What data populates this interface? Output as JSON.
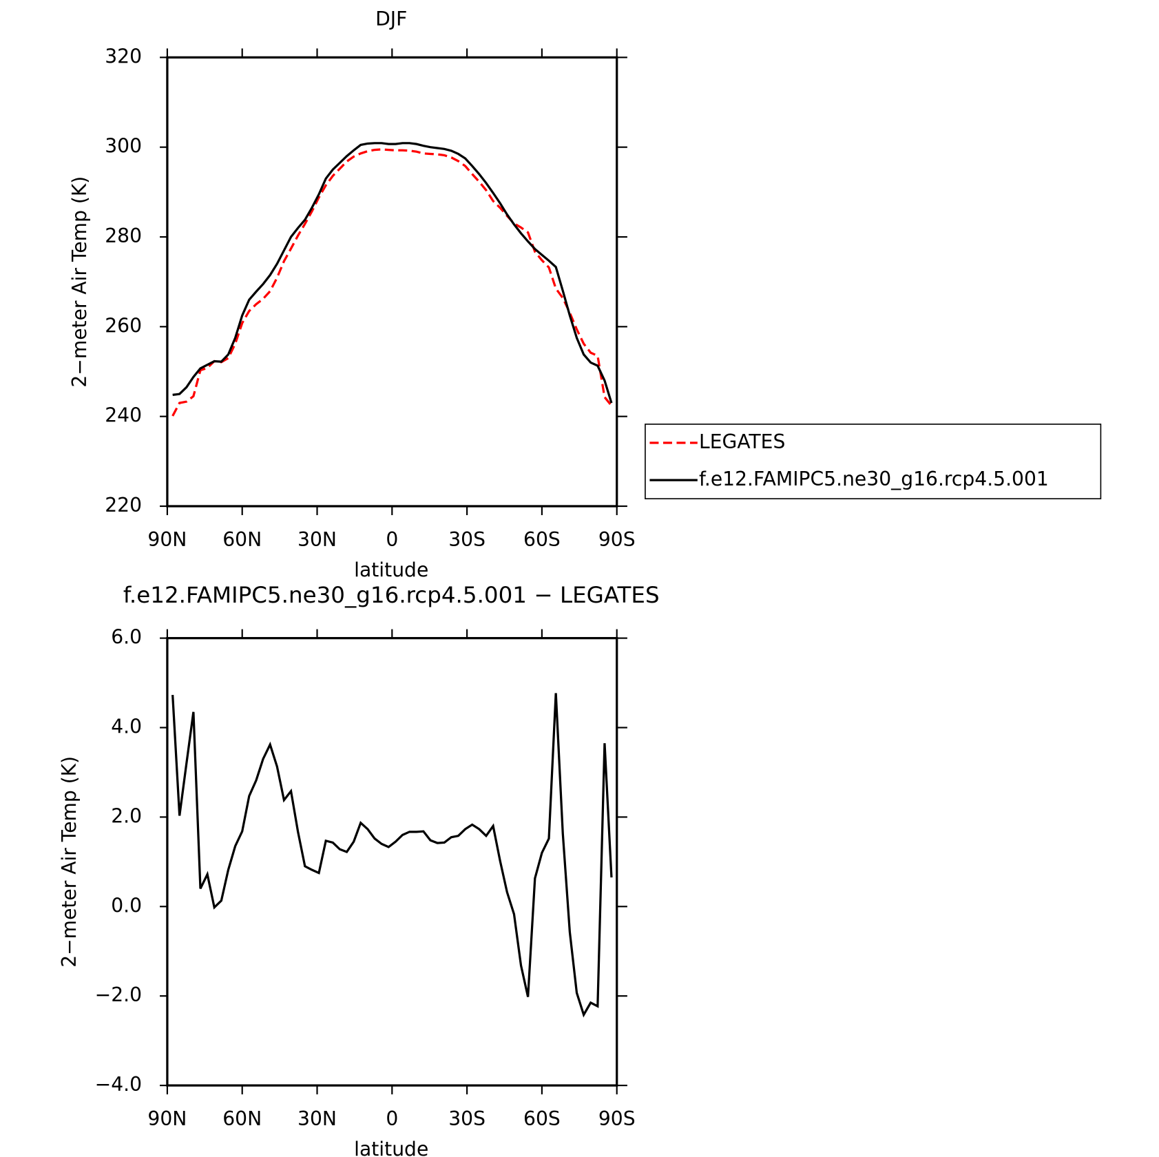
{
  "chart_data": [
    {
      "type": "line",
      "title": "DJF",
      "xlabel": "latitude",
      "ylabel": "2−meter Air Temp (K)",
      "x": [
        87.86,
        85.1,
        82.31,
        79.53,
        76.74,
        73.95,
        71.16,
        68.37,
        65.58,
        62.79,
        60.0,
        57.21,
        54.42,
        51.63,
        48.84,
        46.05,
        43.26,
        40.47,
        37.67,
        34.88,
        32.09,
        29.3,
        26.51,
        23.72,
        20.93,
        18.14,
        15.35,
        12.56,
        9.77,
        6.98,
        4.19,
        1.4,
        -1.4,
        -4.19,
        -6.98,
        -9.77,
        -12.56,
        -15.35,
        -18.14,
        -20.93,
        -23.72,
        -26.51,
        -29.3,
        -32.09,
        -34.88,
        -37.67,
        -40.47,
        -43.26,
        -46.05,
        -48.84,
        -51.63,
        -54.42,
        -57.21,
        -60.0,
        -62.79,
        -65.58,
        -68.37,
        -71.16,
        -73.95,
        -76.74,
        -79.53,
        -82.31,
        -85.1,
        -87.86
      ],
      "series": [
        {
          "name": "LEGATES",
          "color": "#ff0000",
          "line_style": "dashed",
          "values": [
            240.1,
            243.0,
            243.3,
            244.5,
            250.3,
            250.8,
            252.3,
            252.1,
            253.0,
            256.2,
            260.8,
            263.5,
            265.0,
            266.2,
            267.9,
            270.9,
            274.6,
            277.4,
            280.3,
            282.9,
            285.7,
            288.8,
            291.5,
            293.6,
            295.2,
            296.8,
            297.9,
            298.6,
            299.1,
            299.4,
            299.5,
            299.4,
            299.3,
            299.3,
            299.2,
            299.0,
            298.6,
            298.5,
            298.4,
            298.2,
            297.7,
            296.9,
            295.8,
            294.0,
            292.3,
            290.4,
            288.0,
            286.5,
            284.7,
            283.0,
            282.1,
            281.0,
            276.7,
            274.8,
            273.2,
            268.5,
            266.4,
            263.1,
            259.4,
            256.2,
            254.2,
            253.5,
            244.3,
            242.4
          ]
        },
        {
          "name": "f.e12.FAMIPC5.ne30_g16.rcp4.5.001",
          "color": "#000000",
          "line_style": "solid",
          "values": [
            244.8,
            245.0,
            246.5,
            248.8,
            250.7,
            251.5,
            252.3,
            252.2,
            253.8,
            257.5,
            262.5,
            266.0,
            267.8,
            269.5,
            271.5,
            274.0,
            277.0,
            280.0,
            282.0,
            283.8,
            286.5,
            289.5,
            293.0,
            295.0,
            296.5,
            298.0,
            299.3,
            300.5,
            300.8,
            300.9,
            300.9,
            300.7,
            300.7,
            300.9,
            300.9,
            300.7,
            300.3,
            300.0,
            299.8,
            299.6,
            299.2,
            298.5,
            297.5,
            295.8,
            294.0,
            292.0,
            289.8,
            287.5,
            285.0,
            282.8,
            280.8,
            279.0,
            277.3,
            276.0,
            274.7,
            273.3,
            268.0,
            262.5,
            257.5,
            253.8,
            252.0,
            251.3,
            248.0,
            243.0
          ]
        }
      ],
      "xlim": [
        90,
        -90
      ],
      "xticks": [
        {
          "value": 90,
          "label": "90N"
        },
        {
          "value": 60,
          "label": "60N"
        },
        {
          "value": 30,
          "label": "30N"
        },
        0,
        {
          "value": -30,
          "label": "30S"
        },
        {
          "value": -60,
          "label": "60S"
        },
        {
          "value": -90,
          "label": "90S"
        }
      ],
      "ylim": [
        220,
        320
      ],
      "yticks": [
        220,
        240,
        260,
        280,
        300,
        320
      ],
      "legend": "right"
    },
    {
      "type": "line",
      "title": "f.e12.FAMIPC5.ne30_g16.rcp4.5.001 − LEGATES",
      "xlabel": "latitude",
      "ylabel": "2−meter Air Temp (K)",
      "x": [
        87.86,
        85.1,
        82.31,
        79.53,
        76.74,
        73.95,
        71.16,
        68.37,
        65.58,
        62.79,
        60.0,
        57.21,
        54.42,
        51.63,
        48.84,
        46.05,
        43.26,
        40.47,
        37.67,
        34.88,
        32.09,
        29.3,
        26.51,
        23.72,
        20.93,
        18.14,
        15.35,
        12.56,
        9.77,
        6.98,
        4.19,
        1.4,
        -1.4,
        -4.19,
        -6.98,
        -9.77,
        -12.56,
        -15.35,
        -18.14,
        -20.93,
        -23.72,
        -26.51,
        -29.3,
        -32.09,
        -34.88,
        -37.67,
        -40.47,
        -43.26,
        -46.05,
        -48.84,
        -51.63,
        -54.42,
        -57.21,
        -60.0,
        -62.79,
        -65.58,
        -68.37,
        -71.16,
        -73.95,
        -76.74,
        -79.53,
        -82.31,
        -85.1,
        -87.86
      ],
      "color": "#000000",
      "values": [
        4.73,
        2.03,
        3.2,
        4.35,
        0.4,
        0.72,
        -0.02,
        0.13,
        0.82,
        1.35,
        1.68,
        2.47,
        2.82,
        3.3,
        3.62,
        3.13,
        2.38,
        2.58,
        1.67,
        0.9,
        0.82,
        0.75,
        1.47,
        1.43,
        1.28,
        1.22,
        1.45,
        1.87,
        1.73,
        1.52,
        1.4,
        1.33,
        1.45,
        1.6,
        1.67,
        1.67,
        1.68,
        1.48,
        1.42,
        1.43,
        1.55,
        1.58,
        1.73,
        1.83,
        1.73,
        1.58,
        1.8,
        1.02,
        0.32,
        -0.17,
        -1.32,
        -2.02,
        0.63,
        1.2,
        1.52,
        4.77,
        1.63,
        -0.57,
        -1.93,
        -2.42,
        -2.15,
        -2.23,
        3.65,
        0.65
      ],
      "xlim": [
        90,
        -90
      ],
      "xticks": [
        {
          "value": 90,
          "label": "90N"
        },
        {
          "value": 60,
          "label": "60N"
        },
        {
          "value": 30,
          "label": "30N"
        },
        0,
        {
          "value": -30,
          "label": "30S"
        },
        {
          "value": -60,
          "label": "60S"
        },
        {
          "value": -90,
          "label": "90S"
        }
      ],
      "ylim": [
        -4,
        6
      ],
      "yticks": [
        {
          "value": -4,
          "label": "−4.0"
        },
        {
          "value": -2,
          "label": "−2.0"
        },
        {
          "value": 0,
          "label": "0.0"
        },
        {
          "value": 2,
          "label": "2.0"
        },
        {
          "value": 4,
          "label": "4.0"
        },
        {
          "value": 6,
          "label": "6.0"
        }
      ]
    }
  ]
}
